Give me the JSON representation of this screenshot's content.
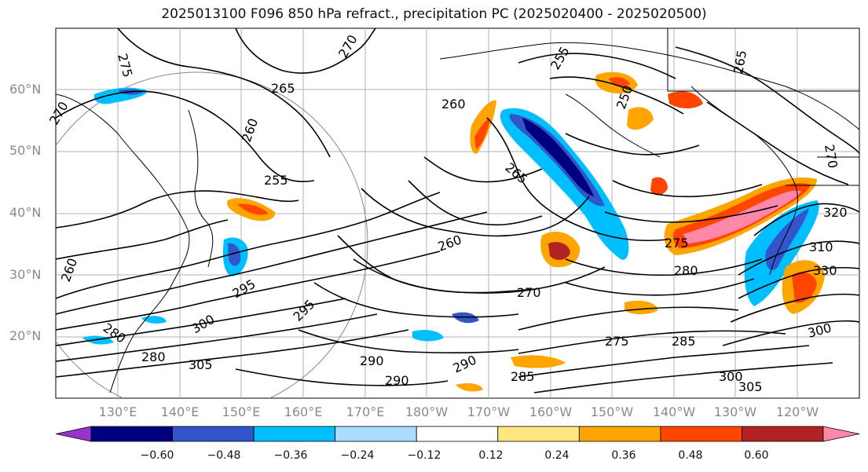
{
  "title": "2025013100 F096 850 hPa refract., precipitation PC (2025020400 - 2025020500)",
  "lat_labels": [
    "60°N",
    "50°N",
    "40°N",
    "30°N",
    "20°N"
  ],
  "lon_labels": [
    "130°E",
    "140°E",
    "150°E",
    "160°E",
    "170°E",
    "180°W",
    "170°W",
    "160°W",
    "150°W",
    "140°W",
    "130°W",
    "120°W"
  ],
  "contour_labels": [
    "275",
    "270",
    "265",
    "260",
    "255",
    "260",
    "265",
    "270",
    "275",
    "280",
    "285",
    "290",
    "295",
    "300",
    "305",
    "250",
    "255",
    "260",
    "265",
    "270",
    "275",
    "280",
    "285",
    "290",
    "295",
    "300",
    "305",
    "260",
    "270",
    "280",
    "290",
    "300",
    "310",
    "320",
    "330"
  ],
  "colorbar": {
    "ticks": [
      "−0.60",
      "−0.48",
      "−0.36",
      "−0.24",
      "−0.12",
      "0.12",
      "0.24",
      "0.36",
      "0.48",
      "0.60"
    ],
    "colors": [
      "#9933cc",
      "#00007f",
      "#3355cc",
      "#00bfff",
      "#aadcff",
      "#ffffff",
      "#ffe680",
      "#ffa500",
      "#ff4500",
      "#b22222",
      "#ff88aa"
    ]
  },
  "colors": {
    "neg_light": "#00bfff",
    "neg_mid": "#3355cc",
    "neg_dark": "#00007f",
    "pos_light": "#ffe680",
    "pos_mid": "#ffa500",
    "pos_strong": "#ff4500",
    "pos_dark": "#b22222",
    "pos_max": "#ff88aa",
    "grid": "#b0b0b0",
    "coast": "#000000",
    "label_gray": "#8a8a8a"
  }
}
